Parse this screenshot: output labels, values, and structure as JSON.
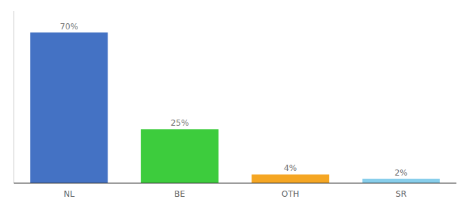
{
  "chart_data": {
    "type": "bar",
    "categories": [
      "NL",
      "BE",
      "OTH",
      "SR"
    ],
    "values": [
      70,
      25,
      4,
      2
    ],
    "value_labels": [
      "70%",
      "25%",
      "4%",
      "2%"
    ],
    "colors": [
      "#4472c4",
      "#3dcc3d",
      "#f5a623",
      "#87ceeb"
    ],
    "ylim": [
      0,
      80
    ],
    "data_labels": true,
    "tick_labels": "x"
  }
}
